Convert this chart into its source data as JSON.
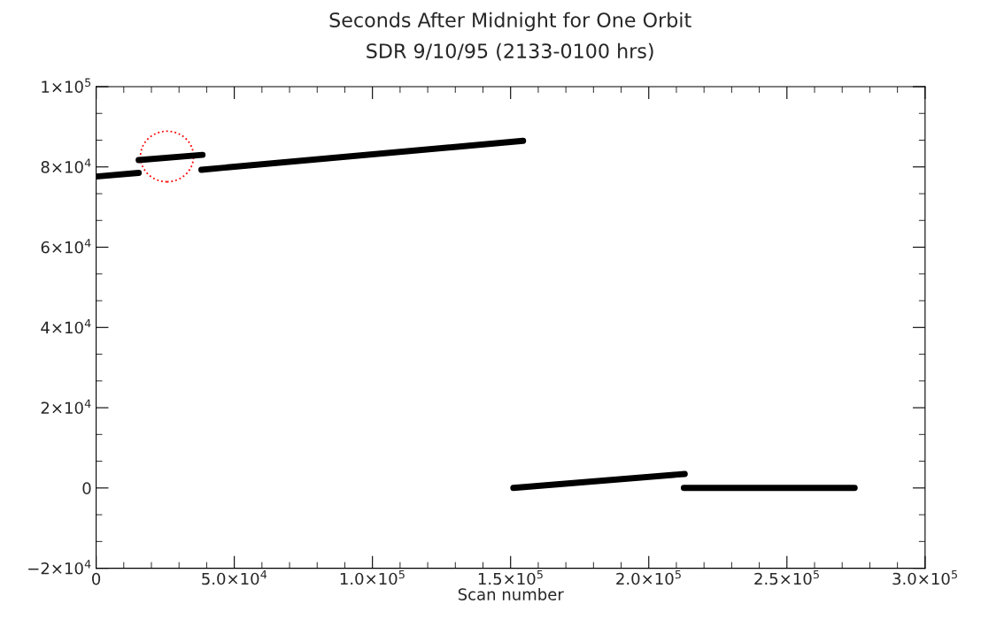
{
  "chart_data": {
    "type": "line",
    "title": "Seconds After Midnight for One Orbit",
    "subtitle": "SDR 9/10/95 (2133-0100 hrs)",
    "xlabel": "Scan number",
    "series": [
      {
        "color": "#000000",
        "x": [
          0,
          15400
        ],
        "values": [
          77600,
          78500
        ]
      },
      {
        "color": "#000000",
        "x": [
          15400,
          38500
        ],
        "values": [
          81700,
          83000
        ]
      },
      {
        "color": "#000000",
        "x": [
          38100,
          154500
        ],
        "values": [
          79300,
          86500
        ]
      },
      {
        "color": "#000000",
        "x": [
          151000,
          213000
        ],
        "values": [
          0,
          3500
        ]
      },
      {
        "color": "#000000",
        "x": [
          212700,
          274500
        ],
        "values": [
          0,
          0
        ]
      }
    ],
    "xlim": [
      0,
      300000
    ],
    "ylim": [
      -20000,
      100000
    ],
    "xticks": [
      0,
      {
        "value": 50000,
        "label": "5.0×10$^{4}$"
      },
      {
        "value": 100000,
        "label": "1.0×10$^{5}$"
      },
      {
        "value": 150000,
        "label": "1.5×10$^{5}$"
      },
      {
        "value": 200000,
        "label": "2.0×10$^{5}$"
      },
      {
        "value": 250000,
        "label": "2.5×10$^{5}$"
      },
      {
        "value": 300000,
        "label": "3.0×10$^{5}$"
      }
    ],
    "yticks": [
      {
        "value": -20000,
        "label": "−2×10$^{4}$"
      },
      0,
      {
        "value": 20000,
        "label": "2×10$^{4}$"
      },
      {
        "value": 40000,
        "label": "4×10$^{4}$"
      },
      {
        "value": 60000,
        "label": "6×10$^{4}$"
      },
      {
        "value": 80000,
        "label": "8×10$^{4}$"
      },
      {
        "value": 100000,
        "label": "1×10$^{5}$"
      }
    ],
    "grid": false,
    "legend": false,
    "marker": "none",
    "line_style": "solid"
  }
}
